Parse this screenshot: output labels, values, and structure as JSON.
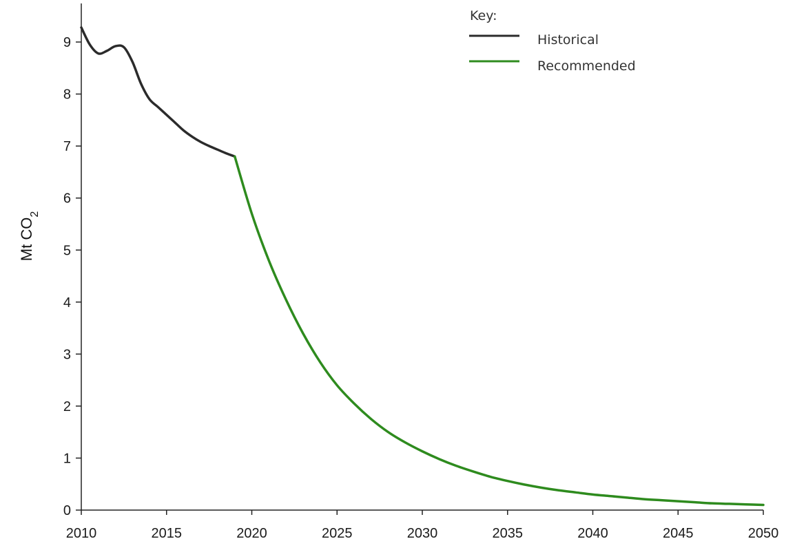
{
  "chart_data": {
    "type": "line",
    "title": "",
    "xlabel": "",
    "ylabel": {
      "main": "Mt CO",
      "subscript": "2"
    },
    "xlim": [
      2010,
      2050
    ],
    "ylim": [
      0,
      9.7
    ],
    "x_ticks": [
      "2010",
      "2015",
      "2020",
      "2025",
      "2030",
      "2035",
      "2040",
      "2045",
      "2050"
    ],
    "y_ticks": [
      "0",
      "1",
      "2",
      "3",
      "4",
      "5",
      "6",
      "7",
      "8",
      "9"
    ],
    "grid": false,
    "legend": {
      "title": "Key:",
      "position": "top-right"
    },
    "series": [
      {
        "name": "Historical",
        "color": "#2b2b2b",
        "x": [
          2010,
          2010.5,
          2011,
          2011.5,
          2012,
          2012.5,
          2013,
          2013.5,
          2014,
          2014.5,
          2015,
          2015.5,
          2016,
          2016.5,
          2017,
          2017.5,
          2018,
          2018.5,
          2019
        ],
        "y": [
          9.28,
          8.95,
          8.78,
          8.83,
          8.92,
          8.9,
          8.62,
          8.2,
          7.9,
          7.75,
          7.6,
          7.45,
          7.3,
          7.18,
          7.08,
          7.0,
          6.93,
          6.86,
          6.8
        ]
      },
      {
        "name": "Recommended",
        "color": "#2e8b1e",
        "x": [
          2019,
          2020,
          2021,
          2022,
          2023,
          2024,
          2025,
          2026,
          2027,
          2028,
          2029,
          2030,
          2031,
          2032,
          2033,
          2034,
          2035,
          2036,
          2037,
          2038,
          2039,
          2040,
          2041,
          2042,
          2043,
          2044,
          2045,
          2046,
          2047,
          2048,
          2049,
          2050
        ],
        "y": [
          6.8,
          5.7,
          4.8,
          4.05,
          3.4,
          2.85,
          2.4,
          2.05,
          1.75,
          1.5,
          1.3,
          1.13,
          0.98,
          0.85,
          0.74,
          0.64,
          0.56,
          0.49,
          0.43,
          0.38,
          0.34,
          0.3,
          0.27,
          0.24,
          0.21,
          0.19,
          0.17,
          0.15,
          0.13,
          0.12,
          0.11,
          0.1
        ]
      }
    ]
  }
}
